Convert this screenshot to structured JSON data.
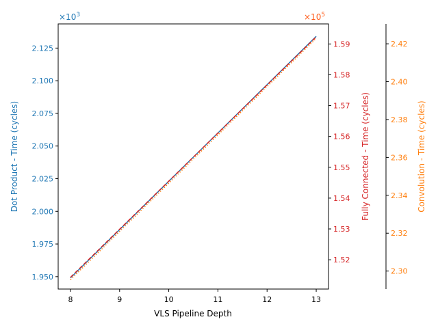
{
  "chart_data": {
    "type": "line",
    "xlabel": "VLS Pipeline Depth",
    "x": [
      8,
      9,
      10,
      11,
      12,
      13
    ],
    "xlim": [
      7.75,
      13.25
    ],
    "x_ticks": [
      "8",
      "9",
      "10",
      "11",
      "12",
      "13"
    ],
    "axes": [
      {
        "id": "dot",
        "label": "Dot Product - Time (cycles)",
        "color": "#1f77b4",
        "multiplier": "×10",
        "exponent": "3",
        "ylim": [
          1.9405,
          2.1435
        ],
        "ticks": [
          "1.950",
          "1.975",
          "2.000",
          "2.025",
          "2.050",
          "2.075",
          "2.100",
          "2.125"
        ]
      },
      {
        "id": "fc",
        "label": "Fully Connected - Time (cycles)",
        "color": "#d62728",
        "multiplier": "×10",
        "exponent": "5",
        "ylim": [
          1.5105,
          1.5965
        ],
        "ticks": [
          "1.52",
          "1.53",
          "1.54",
          "1.55",
          "1.56",
          "1.57",
          "1.58",
          "1.59"
        ]
      },
      {
        "id": "conv",
        "label": "Convolution - Time (cycles)",
        "color": "#ff7f0e",
        "ylim": [
          2.2905,
          2.4305
        ],
        "ticks": [
          "2.30",
          "2.32",
          "2.34",
          "2.36",
          "2.38",
          "2.40",
          "2.42"
        ]
      }
    ],
    "series": [
      {
        "axis": "dot",
        "color": "#1f77b4",
        "style": "solid",
        "values": [
          1.949,
          1.986,
          2.023,
          2.06,
          2.097,
          2.134
        ]
      },
      {
        "axis": "fc",
        "color": "#d62728",
        "style": "dashed",
        "values": [
          1.5143,
          1.5299,
          1.5455,
          1.5611,
          1.5767,
          1.5923
        ]
      },
      {
        "axis": "conv",
        "color": "#ff7f0e",
        "style": "dotted",
        "values": [
          2.2954,
          2.3209,
          2.3464,
          2.3719,
          2.3974,
          2.4229
        ]
      }
    ],
    "grid": false
  }
}
